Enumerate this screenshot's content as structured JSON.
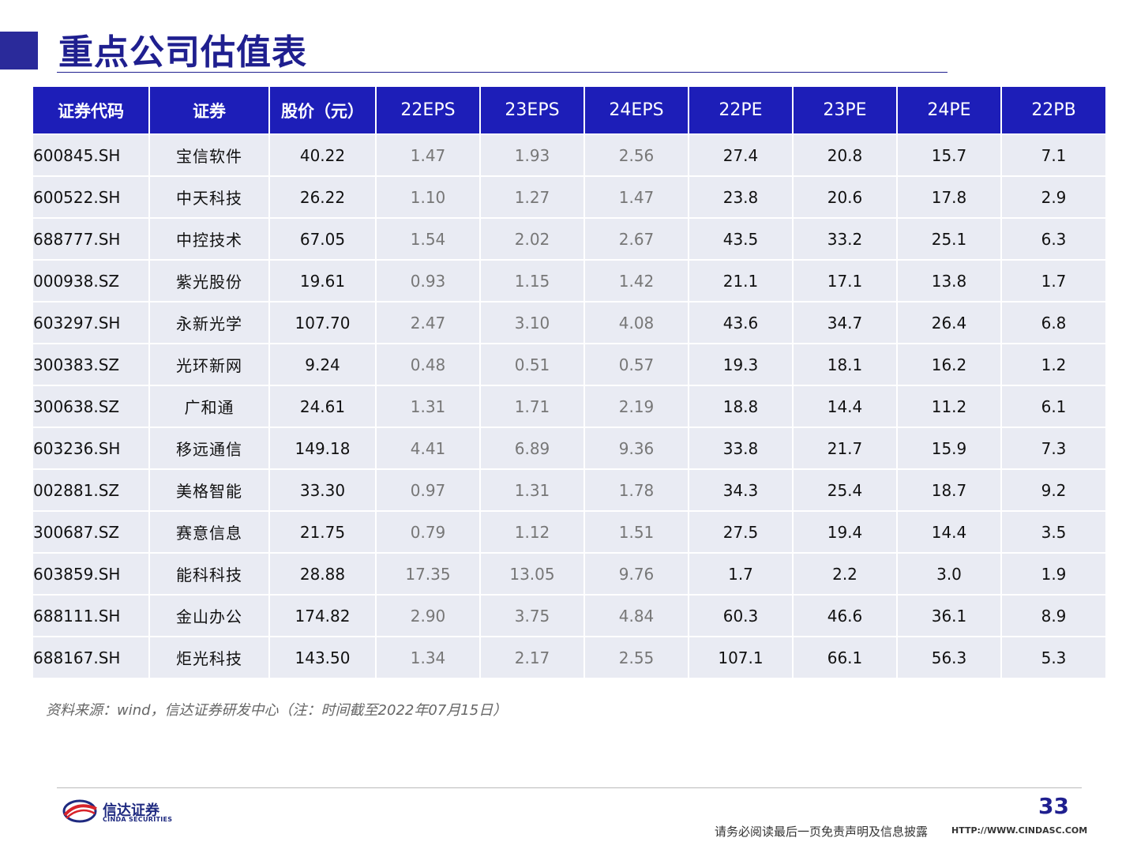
{
  "title": "重点公司估值表",
  "table": {
    "headers": [
      "证券代码",
      "证券",
      "股价（元）",
      "22EPS",
      "23EPS",
      "24EPS",
      "22PE",
      "23PE",
      "24PE",
      "22PB"
    ],
    "rows": [
      [
        "600845.SH",
        "宝信软件",
        "40.22",
        "1.47",
        "1.93",
        "2.56",
        "27.4",
        "20.8",
        "15.7",
        "7.1"
      ],
      [
        "600522.SH",
        "中天科技",
        "26.22",
        "1.10",
        "1.27",
        "1.47",
        "23.8",
        "20.6",
        "17.8",
        "2.9"
      ],
      [
        "688777.SH",
        "中控技术",
        "67.05",
        "1.54",
        "2.02",
        "2.67",
        "43.5",
        "33.2",
        "25.1",
        "6.3"
      ],
      [
        "000938.SZ",
        "紫光股份",
        "19.61",
        "0.93",
        "1.15",
        "1.42",
        "21.1",
        "17.1",
        "13.8",
        "1.7"
      ],
      [
        "603297.SH",
        "永新光学",
        "107.70",
        "2.47",
        "3.10",
        "4.08",
        "43.6",
        "34.7",
        "26.4",
        "6.8"
      ],
      [
        "300383.SZ",
        "光环新网",
        "9.24",
        "0.48",
        "0.51",
        "0.57",
        "19.3",
        "18.1",
        "16.2",
        "1.2"
      ],
      [
        "300638.SZ",
        "广和通",
        "24.61",
        "1.31",
        "1.71",
        "2.19",
        "18.8",
        "14.4",
        "11.2",
        "6.1"
      ],
      [
        "603236.SH",
        "移远通信",
        "149.18",
        "4.41",
        "6.89",
        "9.36",
        "33.8",
        "21.7",
        "15.9",
        "7.3"
      ],
      [
        "002881.SZ",
        "美格智能",
        "33.30",
        "0.97",
        "1.31",
        "1.78",
        "34.3",
        "25.4",
        "18.7",
        "9.2"
      ],
      [
        "300687.SZ",
        "赛意信息",
        "21.75",
        "0.79",
        "1.12",
        "1.51",
        "27.5",
        "19.4",
        "14.4",
        "3.5"
      ],
      [
        "603859.SH",
        "能科科技",
        "28.88",
        "17.35",
        "13.05",
        "9.76",
        "1.7",
        "2.2",
        "3.0",
        "1.9"
      ],
      [
        "688111.SH",
        "金山办公",
        "174.82",
        "2.90",
        "3.75",
        "4.84",
        "60.3",
        "46.6",
        "36.1",
        "8.9"
      ],
      [
        "688167.SH",
        "炬光科技",
        "143.50",
        "1.34",
        "2.17",
        "2.55",
        "107.1",
        "66.1",
        "56.3",
        "5.3"
      ]
    ]
  },
  "source": "资料来源：wind，信达证券研发中心（注：时间截至2022年07月15日）",
  "footer": {
    "logo_cn": "信达证券",
    "logo_en": "CINDA SECURITIES",
    "page_number": "33",
    "disclaimer": "请务必阅读最后一页免责声明及信息披露",
    "website": "HTTP://WWW.CINDASC.COM"
  },
  "colors": {
    "header_bg": "#1d1eb8",
    "row_bg": "#e9ebf3",
    "title": "#1f1f8f"
  }
}
